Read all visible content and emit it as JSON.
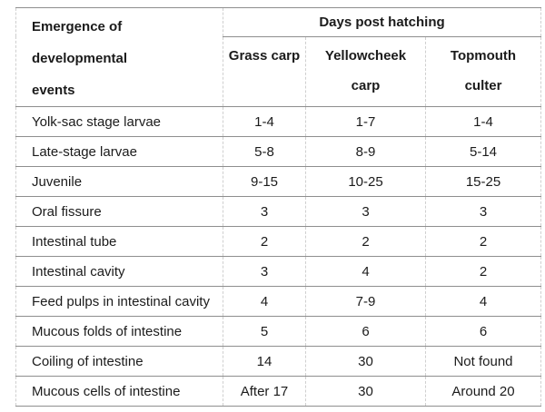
{
  "table": {
    "corner_header": "Emergence of developmental\nevents",
    "span_header": "Days post hatching",
    "columns": [
      "Grass carp",
      "Yellowcheek\ncarp",
      "Topmouth\nculter"
    ],
    "rows": [
      {
        "label": "Yolk-sac stage larvae",
        "values": [
          "1-4",
          "1-7",
          "1-4"
        ]
      },
      {
        "label": "Late-stage larvae",
        "values": [
          "5-8",
          "8-9",
          "5-14"
        ]
      },
      {
        "label": "Juvenile",
        "values": [
          "9-15",
          "10-25",
          "15-25"
        ]
      },
      {
        "label": "Oral fissure",
        "values": [
          "3",
          "3",
          "3"
        ]
      },
      {
        "label": "Intestinal tube",
        "values": [
          "2",
          "2",
          "2"
        ]
      },
      {
        "label": "Intestinal cavity",
        "values": [
          "3",
          "4",
          "2"
        ]
      },
      {
        "label": "Feed pulps in intestinal cavity",
        "values": [
          "4",
          "7-9",
          "4"
        ]
      },
      {
        "label": "Mucous folds of intestine",
        "values": [
          "5",
          "6",
          "6"
        ]
      },
      {
        "label": "Coiling of intestine",
        "values": [
          "14",
          "30",
          "Not found"
        ]
      },
      {
        "label": "Mucous cells of intestine",
        "values": [
          "After 17",
          "30",
          "Around 20"
        ]
      }
    ],
    "colors": {
      "text": "#1b1b1b",
      "horizontal_border": "#8e8e8e",
      "vertical_border": "#cfcfcf",
      "background": "#ffffff"
    }
  }
}
